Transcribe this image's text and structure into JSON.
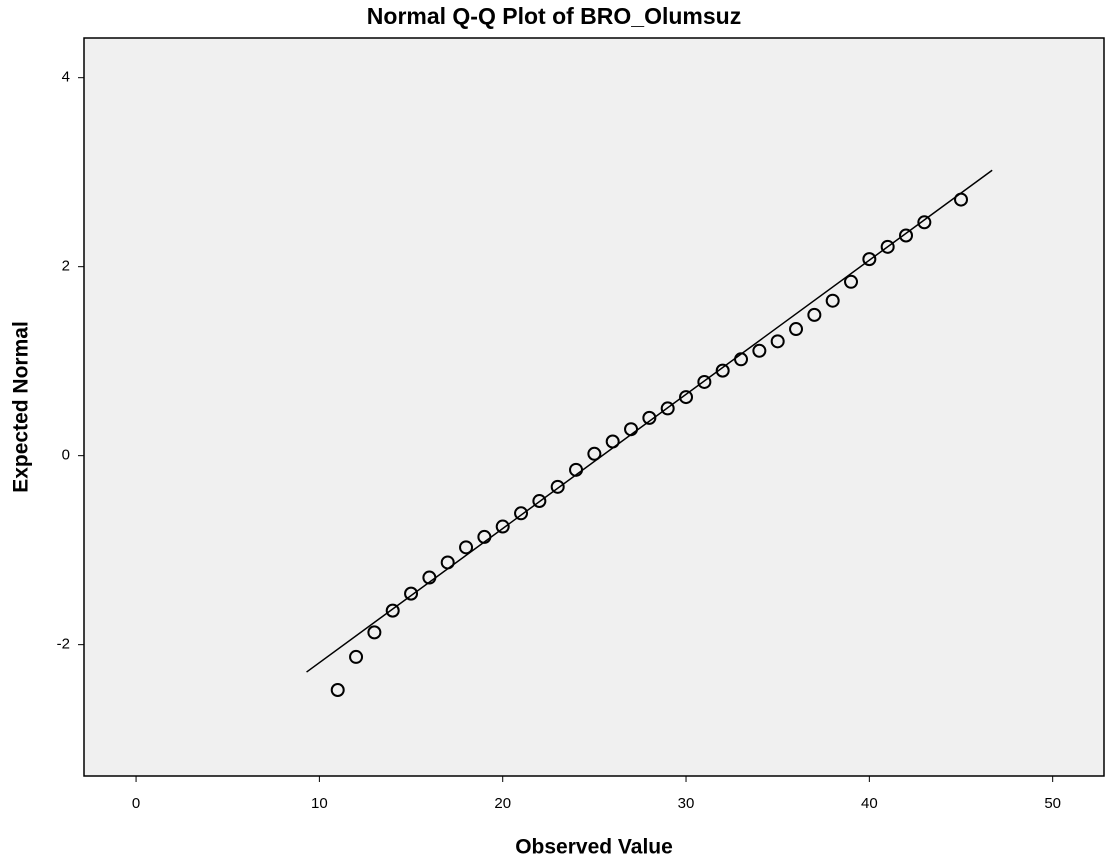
{
  "chart_data": {
    "type": "scatter",
    "title": "Normal Q-Q Plot of BRO_Olumsuz",
    "x_label": "Observed Value",
    "y_label": "Expected Normal",
    "x": [
      11,
      12,
      13,
      14,
      15,
      16,
      17,
      18,
      19,
      20,
      21,
      22,
      23,
      24,
      25,
      26,
      27,
      28,
      29,
      30,
      31,
      32,
      33,
      34,
      35,
      36,
      37,
      38,
      39,
      40,
      41,
      42,
      43,
      45
    ],
    "values": [
      -2.48,
      -2.13,
      -1.87,
      -1.64,
      -1.46,
      -1.29,
      -1.13,
      -0.97,
      -0.86,
      -0.75,
      -0.61,
      -0.48,
      -0.33,
      -0.15,
      0.02,
      0.15,
      0.28,
      0.4,
      0.5,
      0.62,
      0.78,
      0.9,
      1.02,
      1.11,
      1.21,
      1.34,
      1.49,
      1.64,
      1.84,
      2.08,
      2.21,
      2.33,
      2.47,
      2.71
    ],
    "color": "#000000",
    "reference_line": {
      "x": [
        9.3,
        46.7
      ],
      "y": [
        -2.29,
        3.02
      ]
    },
    "xlim": [
      -2.84,
      52.8
    ],
    "ylim": [
      -3.39,
      4.42
    ],
    "xticks": [
      0,
      10,
      20,
      30,
      40,
      50
    ],
    "yticks": [
      -2,
      0,
      2,
      4
    ],
    "grid": false,
    "background": "#f0f0f0"
  }
}
